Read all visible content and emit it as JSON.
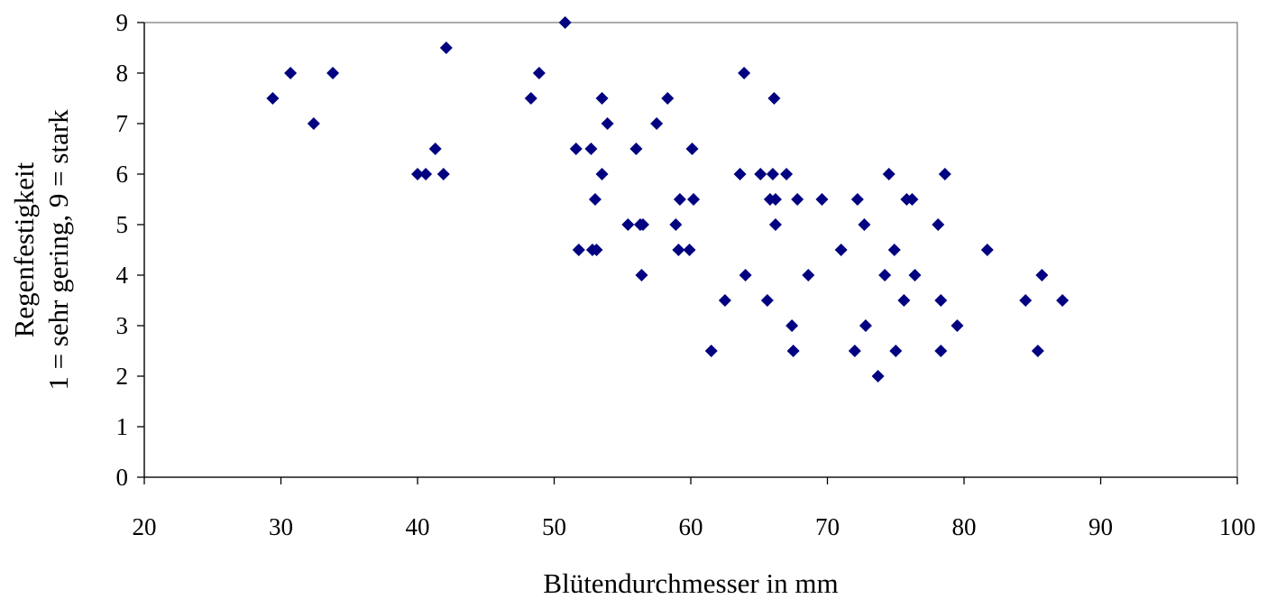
{
  "chart_data": {
    "type": "scatter",
    "title": "",
    "xlabel": "Blütendurchmesser in mm",
    "ylabel_lines": [
      "Regenfestigkeit",
      "1 = sehr gering, 9 = stark"
    ],
    "xlim": [
      20,
      100
    ],
    "ylim": [
      0,
      9
    ],
    "x_ticks": [
      "20",
      "30",
      "40",
      "50",
      "60",
      "70",
      "80",
      "90",
      "100"
    ],
    "y_ticks": [
      "0",
      "1",
      "2",
      "3",
      "4",
      "5",
      "6",
      "7",
      "8",
      "9"
    ],
    "grid": false,
    "legend": "none",
    "marker": "diamond",
    "marker_color": "#000080",
    "points": [
      {
        "x": 29.4,
        "y": 7.5
      },
      {
        "x": 30.7,
        "y": 8.0
      },
      {
        "x": 32.4,
        "y": 7.0
      },
      {
        "x": 33.8,
        "y": 8.0
      },
      {
        "x": 40.0,
        "y": 6.0
      },
      {
        "x": 40.6,
        "y": 6.0
      },
      {
        "x": 41.3,
        "y": 6.5
      },
      {
        "x": 41.9,
        "y": 6.0
      },
      {
        "x": 42.1,
        "y": 8.5
      },
      {
        "x": 48.3,
        "y": 7.5
      },
      {
        "x": 48.9,
        "y": 8.0
      },
      {
        "x": 50.8,
        "y": 9.0
      },
      {
        "x": 51.6,
        "y": 6.5
      },
      {
        "x": 51.8,
        "y": 4.5
      },
      {
        "x": 52.7,
        "y": 6.5
      },
      {
        "x": 52.8,
        "y": 4.5
      },
      {
        "x": 53.0,
        "y": 5.5
      },
      {
        "x": 53.1,
        "y": 4.5
      },
      {
        "x": 53.5,
        "y": 7.5
      },
      {
        "x": 53.5,
        "y": 6.0
      },
      {
        "x": 53.9,
        "y": 7.0
      },
      {
        "x": 55.4,
        "y": 5.0
      },
      {
        "x": 56.0,
        "y": 6.5
      },
      {
        "x": 56.3,
        "y": 5.0
      },
      {
        "x": 56.4,
        "y": 4.0
      },
      {
        "x": 56.5,
        "y": 5.0
      },
      {
        "x": 57.5,
        "y": 7.0
      },
      {
        "x": 58.3,
        "y": 7.5
      },
      {
        "x": 58.9,
        "y": 5.0
      },
      {
        "x": 59.1,
        "y": 4.5
      },
      {
        "x": 59.2,
        "y": 5.5
      },
      {
        "x": 59.9,
        "y": 4.5
      },
      {
        "x": 60.1,
        "y": 6.5
      },
      {
        "x": 60.2,
        "y": 5.5
      },
      {
        "x": 61.5,
        "y": 2.5
      },
      {
        "x": 62.5,
        "y": 3.5
      },
      {
        "x": 63.6,
        "y": 6.0
      },
      {
        "x": 63.9,
        "y": 8.0
      },
      {
        "x": 64.0,
        "y": 4.0
      },
      {
        "x": 65.1,
        "y": 6.0
      },
      {
        "x": 65.6,
        "y": 3.5
      },
      {
        "x": 65.8,
        "y": 5.5
      },
      {
        "x": 66.0,
        "y": 6.0
      },
      {
        "x": 66.1,
        "y": 7.5
      },
      {
        "x": 66.2,
        "y": 5.5
      },
      {
        "x": 66.2,
        "y": 5.0
      },
      {
        "x": 67.0,
        "y": 6.0
      },
      {
        "x": 67.4,
        "y": 3.0
      },
      {
        "x": 67.5,
        "y": 2.5
      },
      {
        "x": 67.8,
        "y": 5.5
      },
      {
        "x": 68.6,
        "y": 4.0
      },
      {
        "x": 69.6,
        "y": 5.5
      },
      {
        "x": 71.0,
        "y": 4.5
      },
      {
        "x": 72.0,
        "y": 2.5
      },
      {
        "x": 72.2,
        "y": 5.5
      },
      {
        "x": 72.7,
        "y": 5.0
      },
      {
        "x": 72.8,
        "y": 3.0
      },
      {
        "x": 73.7,
        "y": 2.0
      },
      {
        "x": 74.2,
        "y": 4.0
      },
      {
        "x": 74.5,
        "y": 6.0
      },
      {
        "x": 74.9,
        "y": 4.5
      },
      {
        "x": 75.0,
        "y": 2.5
      },
      {
        "x": 75.6,
        "y": 3.5
      },
      {
        "x": 75.8,
        "y": 5.5
      },
      {
        "x": 76.2,
        "y": 5.5
      },
      {
        "x": 76.4,
        "y": 4.0
      },
      {
        "x": 78.1,
        "y": 5.0
      },
      {
        "x": 78.3,
        "y": 3.5
      },
      {
        "x": 78.3,
        "y": 2.5
      },
      {
        "x": 78.6,
        "y": 6.0
      },
      {
        "x": 79.5,
        "y": 3.0
      },
      {
        "x": 81.7,
        "y": 4.5
      },
      {
        "x": 84.5,
        "y": 3.5
      },
      {
        "x": 85.4,
        "y": 2.5
      },
      {
        "x": 85.7,
        "y": 4.0
      },
      {
        "x": 87.2,
        "y": 3.5
      }
    ]
  }
}
